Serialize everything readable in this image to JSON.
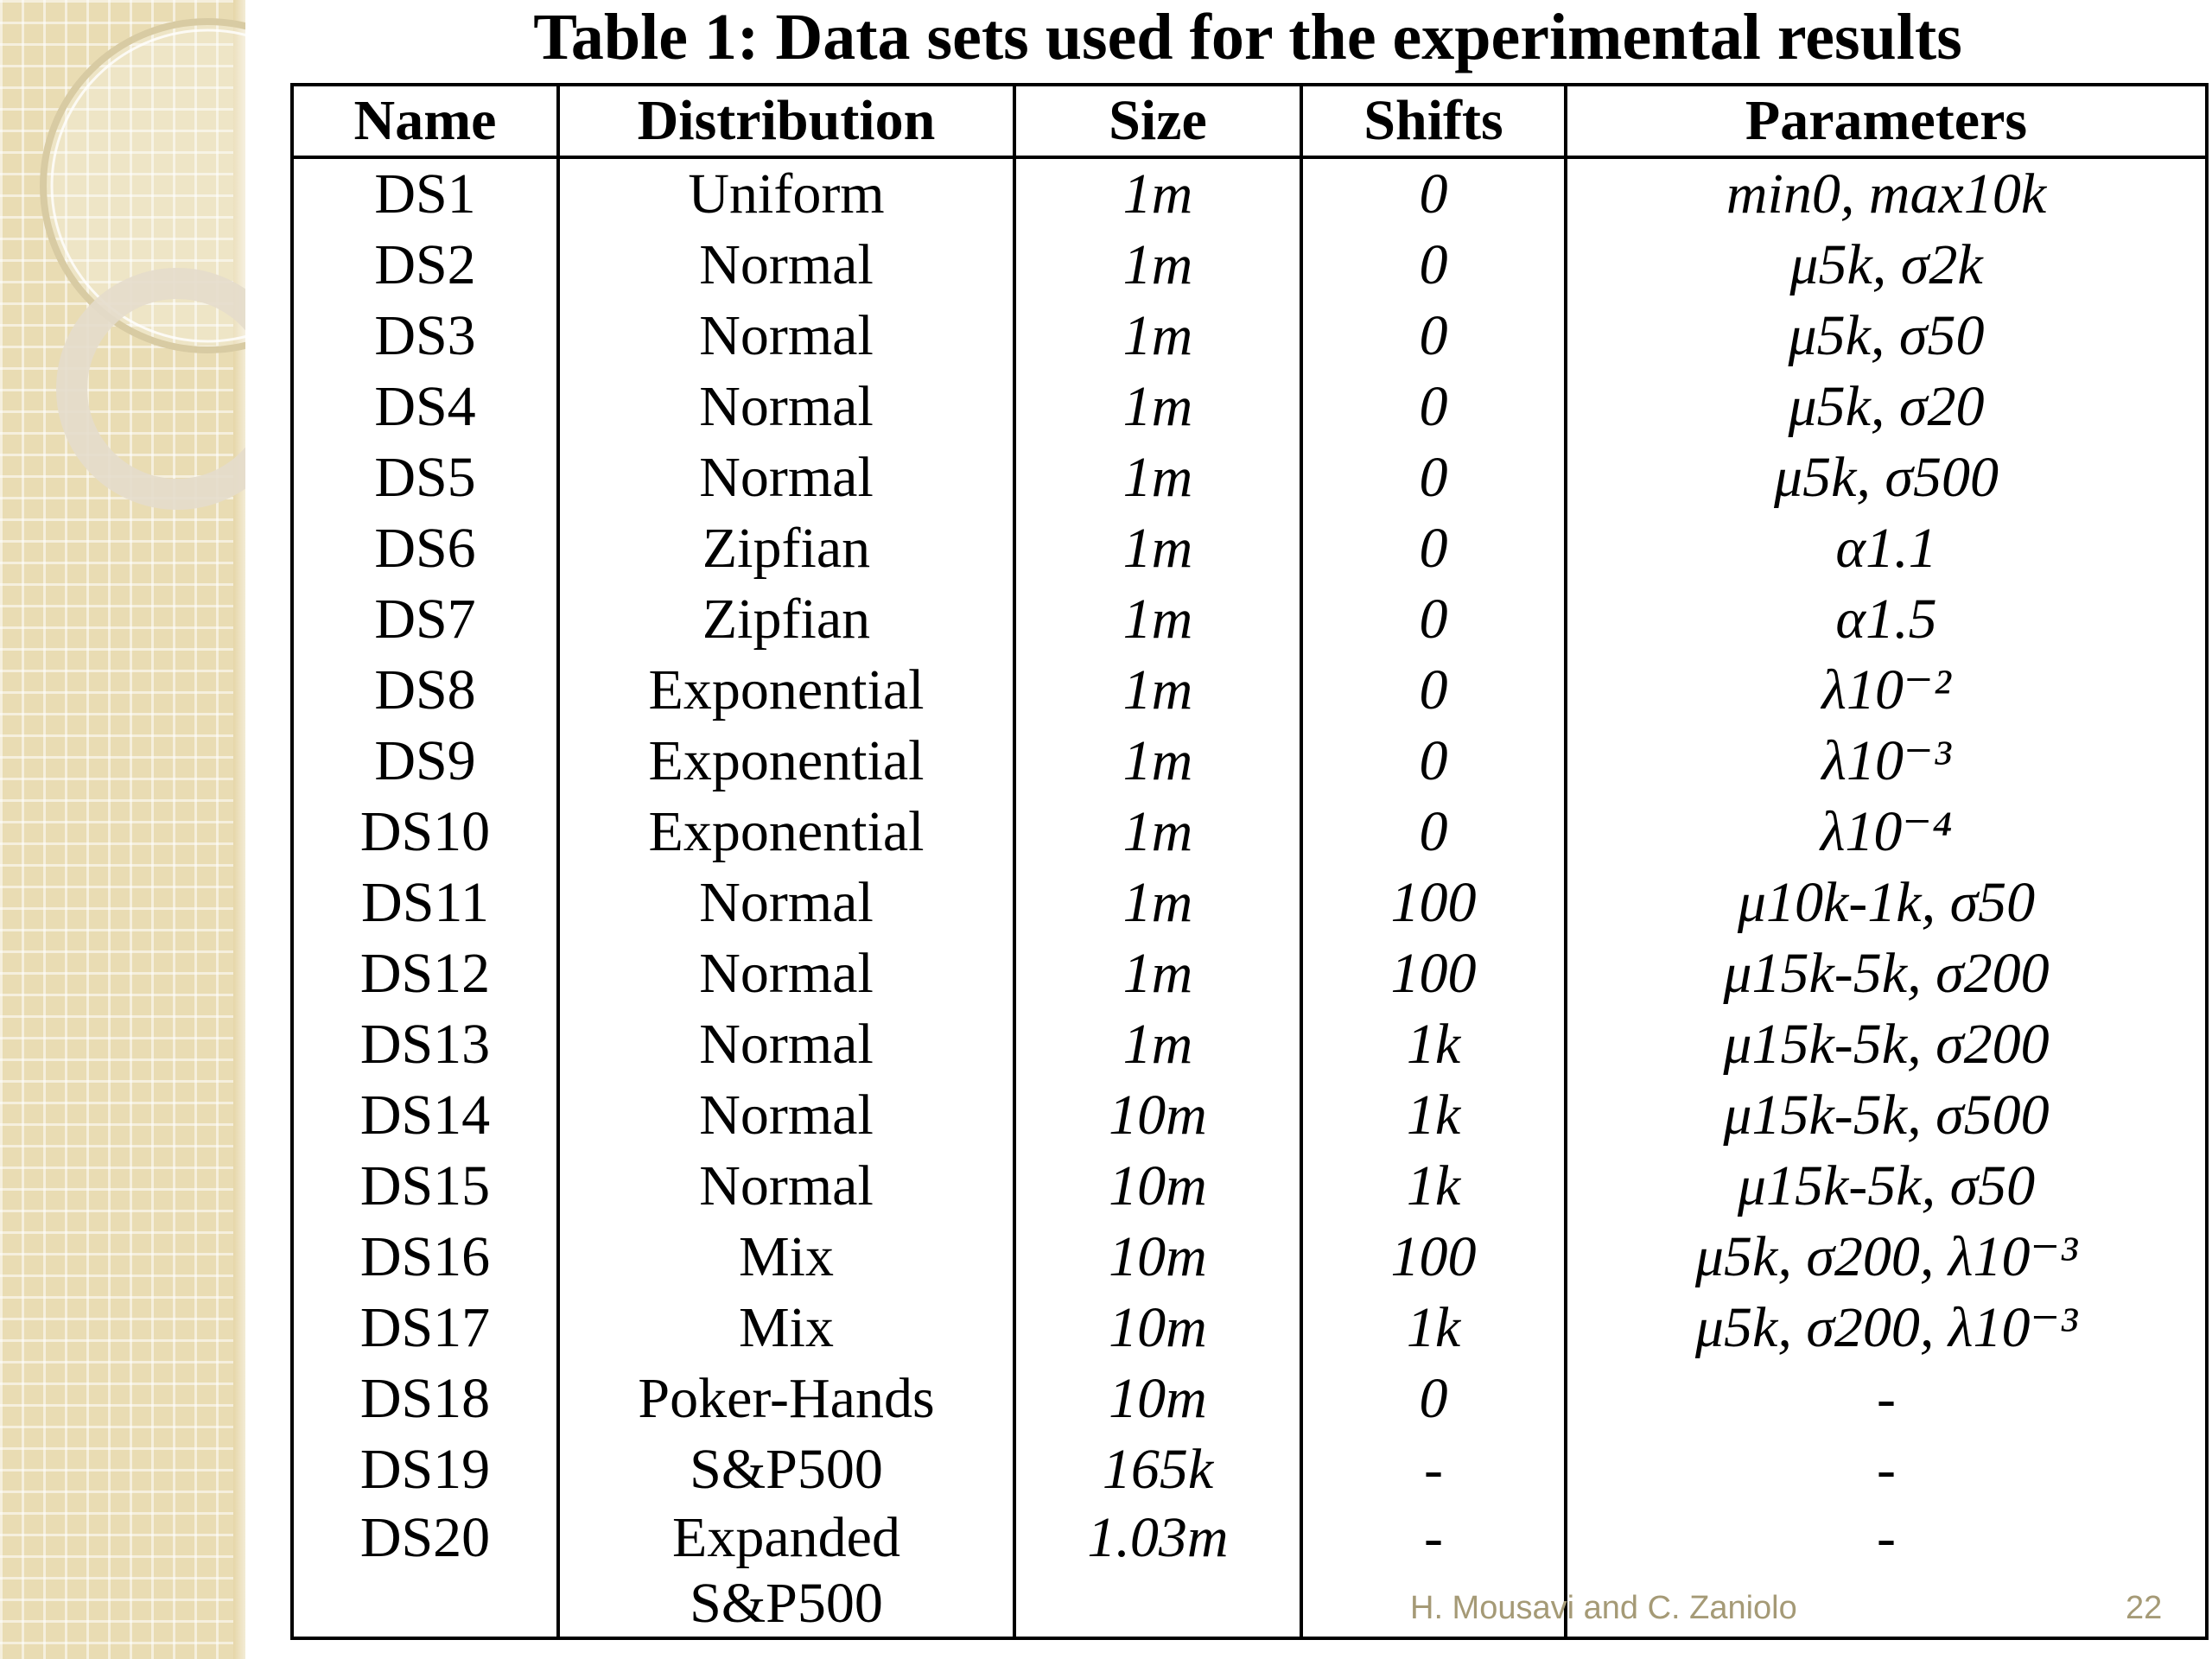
{
  "slide": {
    "title": "Table 1: Data sets used for the experimental results",
    "footer": {
      "authors": "H. Mousavi and C. Zaniolo",
      "page_number": "22"
    },
    "colors": {
      "band": "#e9dcb3",
      "footer_text": "#a59a76",
      "ring": "#d8cba3"
    }
  },
  "table": {
    "headers": [
      "Name",
      "Distribution",
      "Size",
      "Shifts",
      "Parameters"
    ],
    "rows": [
      {
        "name": "DS1",
        "distribution": "Uniform",
        "size": "1m",
        "shifts": "0",
        "parameters": "min0, max10k"
      },
      {
        "name": "DS2",
        "distribution": "Normal",
        "size": "1m",
        "shifts": "0",
        "parameters": "μ5k, σ2k"
      },
      {
        "name": "DS3",
        "distribution": "Normal",
        "size": "1m",
        "shifts": "0",
        "parameters": "μ5k, σ50"
      },
      {
        "name": "DS4",
        "distribution": "Normal",
        "size": "1m",
        "shifts": "0",
        "parameters": "μ5k, σ20"
      },
      {
        "name": "DS5",
        "distribution": "Normal",
        "size": "1m",
        "shifts": "0",
        "parameters": "μ5k, σ500"
      },
      {
        "name": "DS6",
        "distribution": "Zipfian",
        "size": "1m",
        "shifts": "0",
        "parameters": "α1.1"
      },
      {
        "name": "DS7",
        "distribution": "Zipfian",
        "size": "1m",
        "shifts": "0",
        "parameters": "α1.5"
      },
      {
        "name": "DS8",
        "distribution": "Exponential",
        "size": "1m",
        "shifts": "0",
        "parameters": "λ10⁻²"
      },
      {
        "name": "DS9",
        "distribution": "Exponential",
        "size": "1m",
        "shifts": "0",
        "parameters": "λ10⁻³"
      },
      {
        "name": "DS10",
        "distribution": "Exponential",
        "size": "1m",
        "shifts": "0",
        "parameters": "λ10⁻⁴"
      },
      {
        "name": "DS11",
        "distribution": "Normal",
        "size": "1m",
        "shifts": "100",
        "parameters": "μ10k-1k, σ50"
      },
      {
        "name": "DS12",
        "distribution": "Normal",
        "size": "1m",
        "shifts": "100",
        "parameters": "μ15k-5k, σ200"
      },
      {
        "name": "DS13",
        "distribution": "Normal",
        "size": "1m",
        "shifts": "1k",
        "parameters": "μ15k-5k, σ200"
      },
      {
        "name": "DS14",
        "distribution": "Normal",
        "size": "10m",
        "shifts": "1k",
        "parameters": "μ15k-5k, σ500"
      },
      {
        "name": "DS15",
        "distribution": "Normal",
        "size": "10m",
        "shifts": "1k",
        "parameters": "μ15k-5k, σ50"
      },
      {
        "name": "DS16",
        "distribution": "Mix",
        "size": "10m",
        "shifts": "100",
        "parameters": "μ5k, σ200, λ10⁻³"
      },
      {
        "name": "DS17",
        "distribution": "Mix",
        "size": "10m",
        "shifts": "1k",
        "parameters": "μ5k, σ200, λ10⁻³"
      },
      {
        "name": "DS18",
        "distribution": "Poker-Hands",
        "size": "10m",
        "shifts": "0",
        "parameters": "-"
      },
      {
        "name": "DS19",
        "distribution": "S&P500",
        "size": "165k",
        "shifts": "-",
        "parameters": "-"
      },
      {
        "name": "DS20",
        "distribution": "Expanded\nS&P500",
        "size": "1.03m",
        "shifts": "-",
        "parameters": "-"
      }
    ]
  }
}
